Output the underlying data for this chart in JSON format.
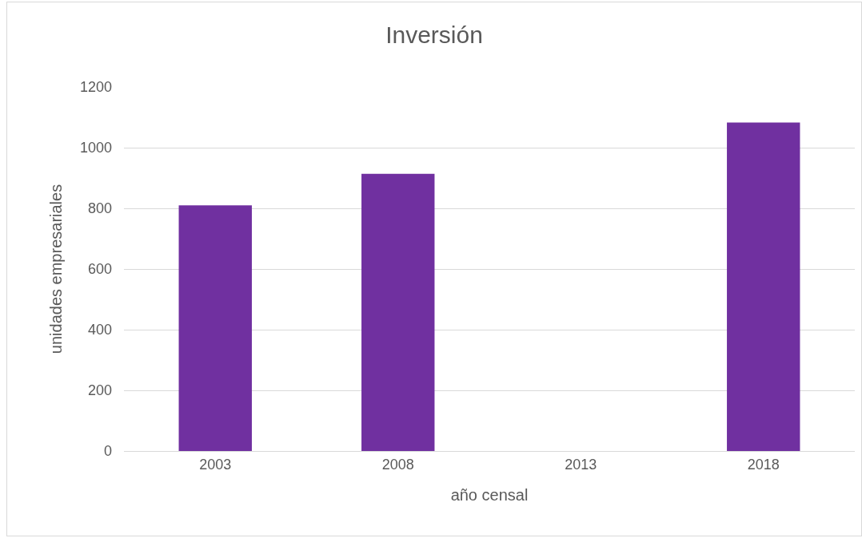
{
  "chart_data": {
    "type": "bar",
    "title": "Inversión",
    "xlabel": "año censal",
    "ylabel": "unidades empresariales",
    "categories": [
      "2003",
      "2008",
      "2013",
      "2018"
    ],
    "values": [
      810,
      914,
      null,
      1083
    ],
    "color": "#7030a0",
    "ylim": [
      0,
      1200
    ],
    "yticks": [
      0,
      200,
      400,
      600,
      800,
      1000,
      1200
    ],
    "grid": "y"
  }
}
